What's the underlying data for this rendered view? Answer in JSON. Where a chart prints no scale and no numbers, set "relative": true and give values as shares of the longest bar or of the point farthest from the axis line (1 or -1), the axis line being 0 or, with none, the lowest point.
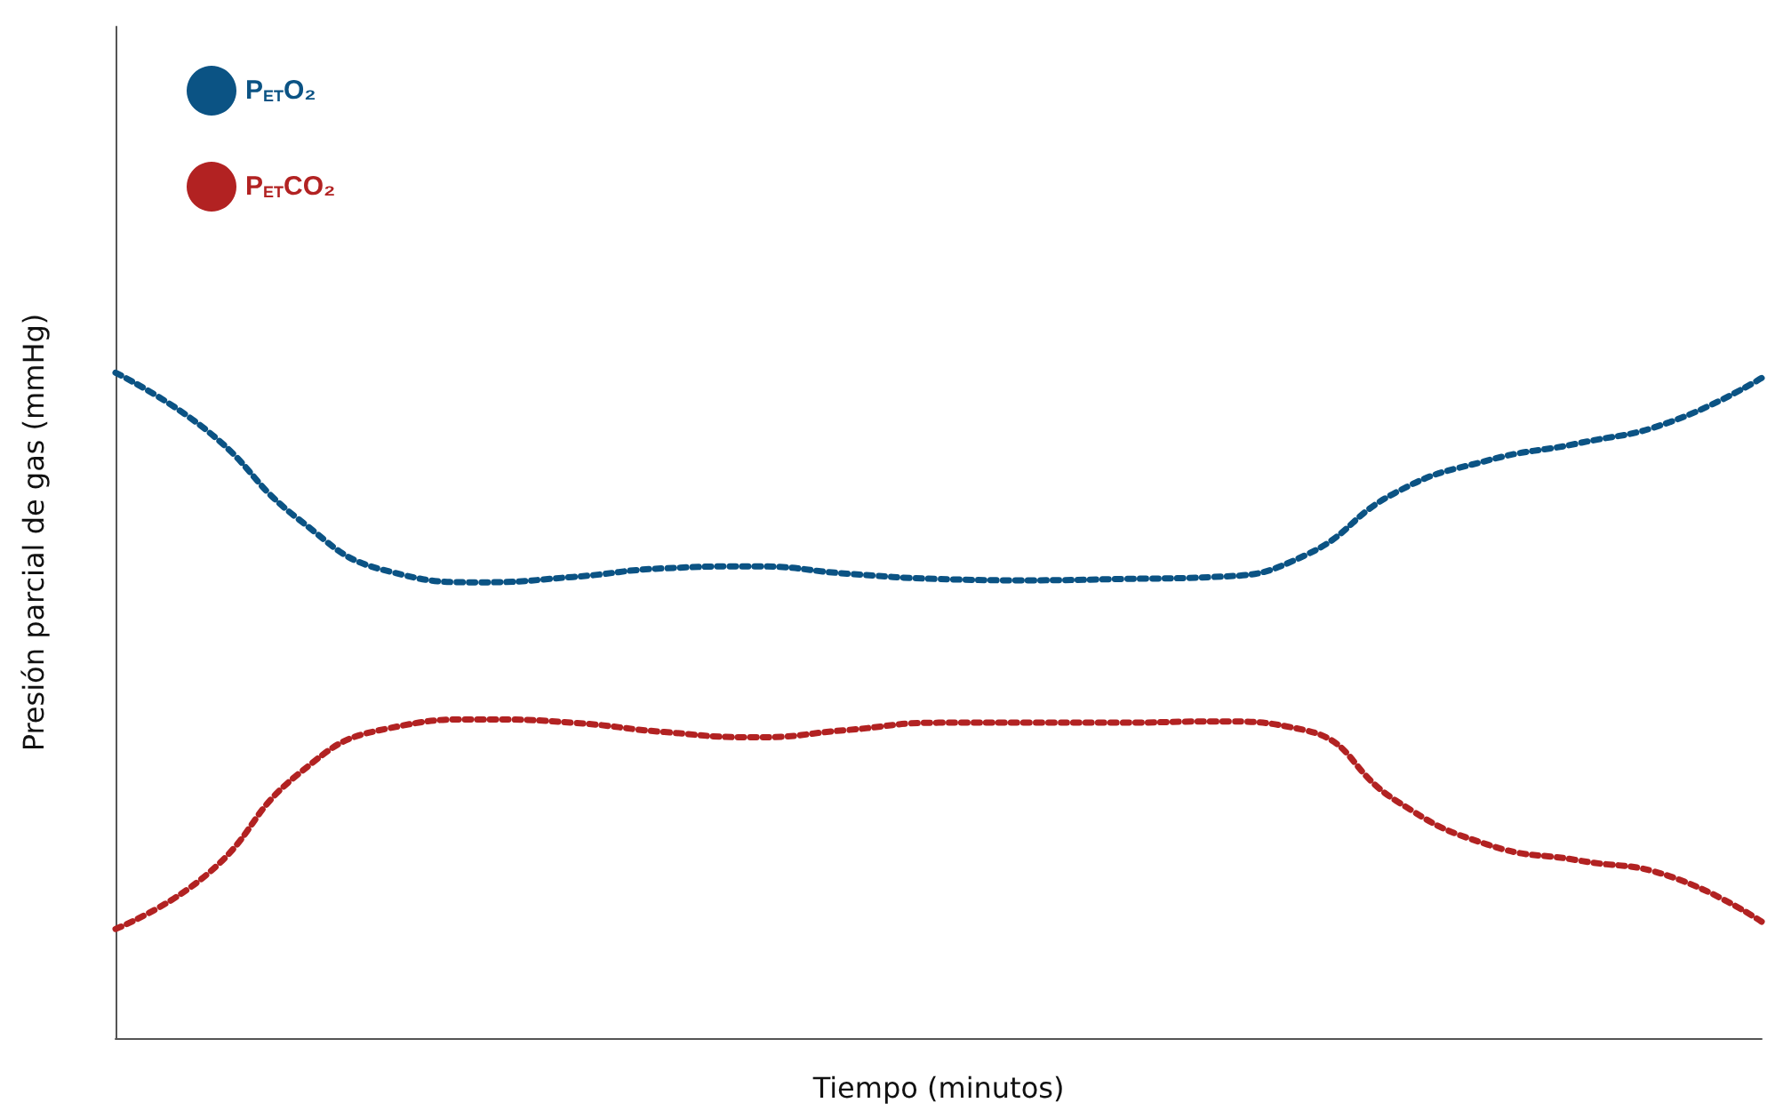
{
  "chart_data": {
    "type": "line",
    "relative": true,
    "xlabel": "Tiempo (minutos)",
    "ylabel": "Presión parcial de gas (mmHg)",
    "categories": [
      null,
      null,
      null,
      null,
      null,
      null,
      null,
      null,
      null,
      null,
      null,
      null,
      null,
      null,
      null,
      null,
      null,
      null,
      null
    ],
    "series": [
      {
        "name": "P$_{ET}$O₂",
        "color": "#0b5384",
        "values": [
          1.0,
          0.913,
          0.78,
          0.701,
          0.685,
          0.693,
          0.706,
          0.709,
          0.698,
          0.69,
          0.688,
          0.69,
          0.693,
          0.725,
          0.82,
          0.868,
          0.894,
          0.926,
          0.992
        ]
      },
      {
        "name": "P$_{ET}$CO₂",
        "color": "#b22222",
        "values": [
          0.164,
          0.246,
          0.397,
          0.466,
          0.479,
          0.474,
          0.46,
          0.452,
          0.463,
          0.474,
          0.474,
          0.474,
          0.476,
          0.463,
          0.357,
          0.291,
          0.267,
          0.243,
          0.175
        ]
      }
    ],
    "legend": "top left",
    "marker": "none",
    "line_style": "dotted",
    "grid": false
  }
}
